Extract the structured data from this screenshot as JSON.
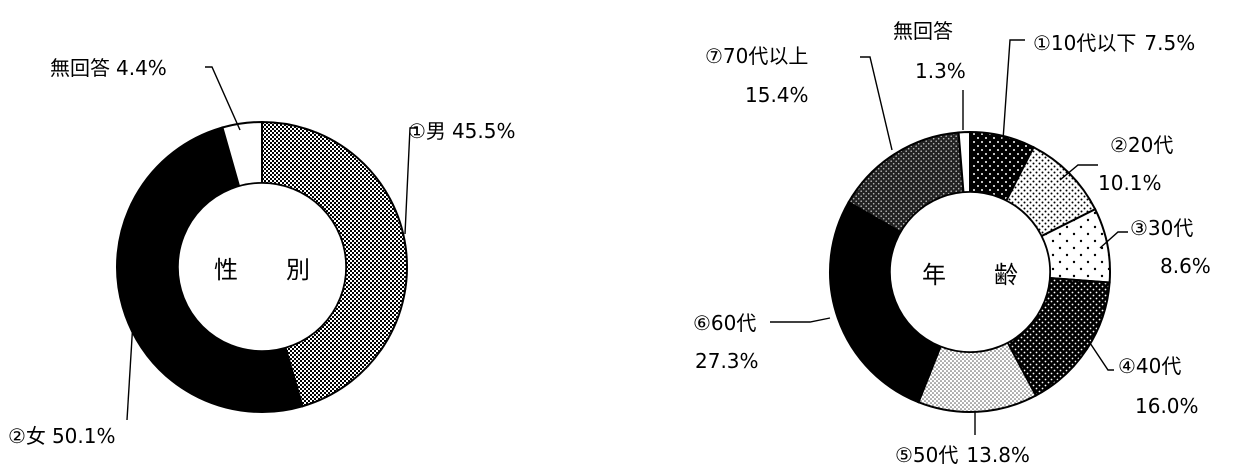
{
  "chart_data": [
    {
      "type": "pie",
      "center_label": "性　　別",
      "slices": [
        {
          "label": "①男",
          "value": 45.5,
          "display": "45.5%",
          "pattern": "checker"
        },
        {
          "label": "②女",
          "value": 50.1,
          "display": "50.1%",
          "pattern": "solid"
        },
        {
          "label": "無回答",
          "value": 4.4,
          "display": "4.4%",
          "pattern": "white"
        }
      ]
    },
    {
      "type": "pie",
      "center_label": "年　　齢",
      "slices": [
        {
          "label": "①10代以下",
          "value": 7.5,
          "display": "7.5%",
          "pattern": "blackdots"
        },
        {
          "label": "②20代",
          "value": 10.1,
          "display": "10.1%",
          "pattern": "densedots"
        },
        {
          "label": "③30代",
          "value": 8.6,
          "display": "8.6%",
          "pattern": "sparsedots"
        },
        {
          "label": "④40代",
          "value": 16.0,
          "display": "16.0%",
          "pattern": "blackdots2"
        },
        {
          "label": "⑤50代",
          "value": 13.8,
          "display": "13.8%",
          "pattern": "lightgray"
        },
        {
          "label": "⑥60代",
          "value": 27.3,
          "display": "27.3%",
          "pattern": "solid"
        },
        {
          "label": "⑦70代以上",
          "value": 15.4,
          "display": "15.4%",
          "pattern": "darkdots"
        },
        {
          "label": "無回答",
          "value": 1.3,
          "display": "1.3%",
          "pattern": "white"
        }
      ]
    }
  ]
}
